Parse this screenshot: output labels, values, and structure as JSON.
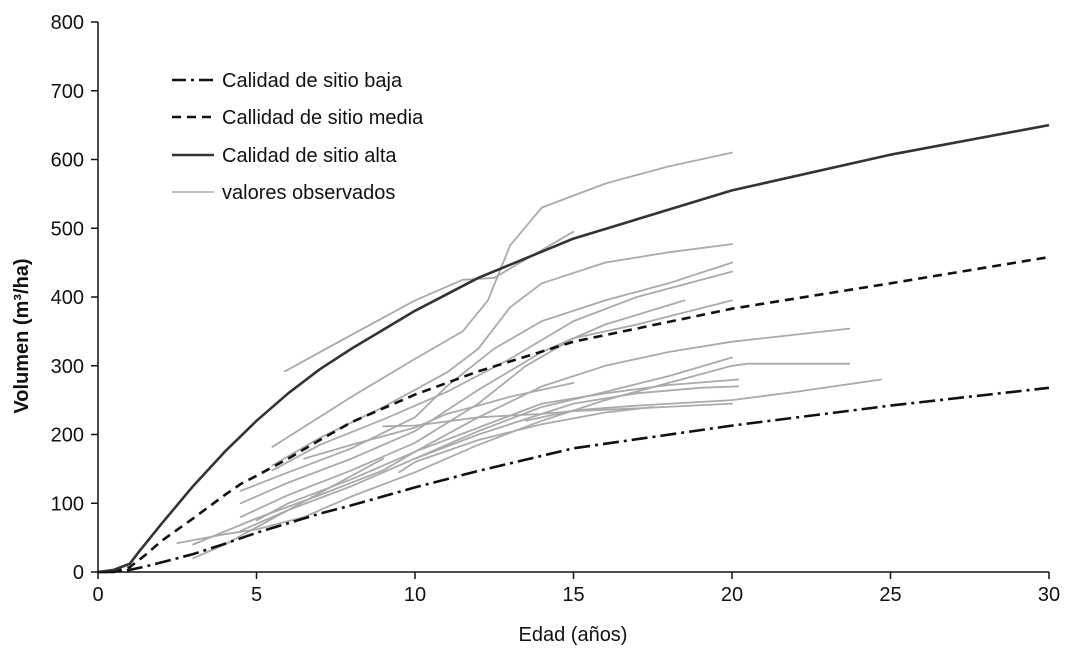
{
  "chart_data": {
    "type": "line",
    "xlabel": "Edad (años)",
    "ylabel": "Volumen (m³/ha)",
    "xlim": [
      0,
      30
    ],
    "ylim": [
      0,
      800
    ],
    "xticks": [
      "0",
      "5",
      "10",
      "15",
      "20",
      "25",
      "30"
    ],
    "yticks": [
      "0",
      "100",
      "200",
      "300",
      "400",
      "500",
      "600",
      "700",
      "800"
    ],
    "grid": false,
    "legend_position": "top-left",
    "series": [
      {
        "name": "Calidad de sitio baja",
        "style": "dash-dot",
        "color": "#111111",
        "x": [
          0,
          0.5,
          1,
          1.5,
          2,
          3,
          4,
          5,
          6,
          7,
          8,
          10,
          12,
          15,
          20,
          25,
          30
        ],
        "values": [
          0,
          0,
          3,
          8,
          14,
          26,
          41,
          57,
          71,
          85,
          97,
          123,
          147,
          180,
          213,
          242,
          268
        ]
      },
      {
        "name": "Callidad de sitio media",
        "style": "dashed",
        "color": "#111111",
        "x": [
          0,
          0.5,
          1,
          1.5,
          2,
          3,
          4,
          4.5,
          5,
          6,
          7,
          8,
          10,
          12,
          15,
          20,
          25,
          30
        ],
        "values": [
          0,
          0,
          7,
          25,
          45,
          78,
          112,
          128,
          140,
          165,
          192,
          218,
          258,
          292,
          335,
          383,
          420,
          458
        ]
      },
      {
        "name": "Calidad de sitio alta",
        "style": "solid",
        "color": "#333333",
        "x": [
          0,
          0.5,
          1,
          1.3,
          2,
          3,
          4,
          5,
          6,
          7,
          8,
          10,
          12,
          15,
          20,
          25,
          30
        ],
        "values": [
          0,
          3,
          12,
          30,
          70,
          125,
          175,
          220,
          260,
          295,
          325,
          380,
          428,
          485,
          555,
          607,
          650
        ]
      }
    ],
    "observed": {
      "name": "valores observados",
      "color": "#aaaaaa",
      "lines": [
        {
          "x": [
            5.9,
            8,
            10,
            11.5,
            12.5,
            13.5,
            15
          ],
          "values": [
            292,
            345,
            395,
            425,
            428,
            455,
            495
          ]
        },
        {
          "x": [
            5.5,
            8,
            10,
            11.5,
            12.3,
            13,
            14,
            16,
            18,
            20
          ],
          "values": [
            182,
            255,
            310,
            350,
            395,
            475,
            530,
            565,
            590,
            610
          ]
        },
        {
          "x": [
            5.5,
            7,
            9,
            11,
            12,
            13,
            14,
            16,
            18,
            20
          ],
          "values": [
            155,
            195,
            240,
            290,
            325,
            385,
            420,
            450,
            465,
            477
          ]
        },
        {
          "x": [
            5.5,
            7,
            9,
            11,
            13,
            15,
            17,
            20
          ],
          "values": [
            148,
            185,
            222,
            262,
            310,
            365,
            400,
            437
          ]
        },
        {
          "x": [
            4.5,
            6,
            8,
            10,
            11,
            12.5,
            14,
            16,
            18,
            20
          ],
          "values": [
            118,
            145,
            180,
            225,
            270,
            325,
            365,
            395,
            420,
            450
          ]
        },
        {
          "x": [
            4.5,
            6,
            8,
            10,
            12,
            14,
            16,
            18.5
          ],
          "values": [
            100,
            130,
            165,
            205,
            265,
            320,
            360,
            395
          ]
        },
        {
          "x": [
            4.5,
            6,
            8,
            10,
            12,
            13.5,
            15,
            17,
            20
          ],
          "values": [
            80,
            112,
            148,
            188,
            245,
            300,
            340,
            360,
            395
          ]
        },
        {
          "x": [
            3,
            5,
            7,
            9,
            10,
            12,
            14,
            16,
            18,
            20,
            23.7
          ],
          "values": [
            40,
            78,
            112,
            148,
            175,
            225,
            270,
            300,
            320,
            335,
            354
          ]
        },
        {
          "x": [
            3,
            4,
            5,
            6,
            7,
            8,
            9
          ],
          "values": [
            20,
            40,
            65,
            90,
            115,
            140,
            165
          ]
        },
        {
          "x": [
            2.5,
            4,
            5,
            6.5,
            8,
            10,
            12,
            14,
            16,
            18,
            20,
            20.5,
            23.7
          ],
          "values": [
            42,
            55,
            62,
            80,
            110,
            145,
            185,
            220,
            250,
            275,
            300,
            303,
            303
          ]
        },
        {
          "x": [
            4.5,
            6,
            8,
            10,
            12,
            14,
            16,
            18,
            20
          ],
          "values": [
            60,
            90,
            125,
            165,
            205,
            240,
            262,
            285,
            312
          ]
        },
        {
          "x": [
            5,
            6,
            8,
            10,
            12,
            14,
            16,
            18,
            20.2
          ],
          "values": [
            75,
            100,
            135,
            175,
            210,
            245,
            260,
            272,
            280
          ]
        },
        {
          "x": [
            6.5,
            8,
            10,
            11,
            12,
            13,
            15
          ],
          "values": [
            165,
            185,
            210,
            230,
            242,
            255,
            275
          ]
        },
        {
          "x": [
            9.5,
            10,
            12,
            14,
            16,
            17.5
          ],
          "values": [
            145,
            160,
            192,
            215,
            232,
            240
          ]
        },
        {
          "x": [
            9,
            10,
            12,
            14,
            15,
            17,
            20
          ],
          "values": [
            212,
            213,
            225,
            230,
            234,
            238,
            245
          ]
        },
        {
          "x": [
            10,
            12,
            14,
            15,
            17,
            19,
            20.2
          ],
          "values": [
            165,
            200,
            230,
            245,
            260,
            268,
            270
          ]
        },
        {
          "x": [
            13.5,
            15,
            17,
            20,
            22,
            24.7
          ],
          "values": [
            220,
            235,
            242,
            250,
            262,
            280
          ]
        }
      ]
    }
  }
}
